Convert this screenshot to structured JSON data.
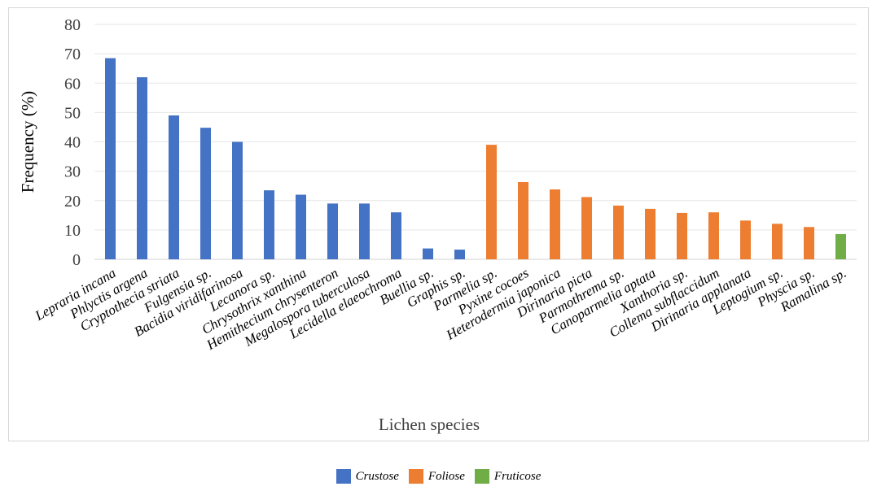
{
  "chart_data": {
    "type": "bar",
    "title": "",
    "xlabel": "Lichen species",
    "ylabel": "Frequency (%)",
    "ylim": [
      0,
      80
    ],
    "yticks": [
      "0",
      "10",
      "20",
      "30",
      "40",
      "50",
      "60",
      "70",
      "80"
    ],
    "grid": true,
    "legend_position": "bottom",
    "categories": [
      "Lepraria incana",
      "Phlyctis argena",
      "Cryptothecia striata",
      "Fulgensia sp.",
      "Bacidia viridifarinosa",
      "Lecanora sp.",
      "Chrysothrix xanthina",
      "Hemithecium chrysenteron",
      "Megalospora tuberculosa",
      "Lecidella elaeochroma",
      "Buellia sp.",
      "Graphis sp.",
      "Parmelia sp.",
      "Pyxine cocoes",
      "Heterodermia japonica",
      "Dirinaria picta",
      "Parmothrema sp.",
      "Canoparmelia aptata",
      "Xanthoria sp.",
      "Collema subflaccidum",
      "Dirinaria applanata",
      "Leptogium sp.",
      "Physcia sp.",
      "Ramalina sp."
    ],
    "values": [
      68.5,
      62,
      49,
      44.8,
      40,
      23.5,
      22,
      19,
      19,
      16,
      3.7,
      3.3,
      39,
      26.3,
      23.8,
      21.2,
      18.3,
      17.2,
      15.8,
      16,
      13.2,
      12.1,
      11,
      8.6
    ],
    "groups": [
      "Crustose",
      "Crustose",
      "Crustose",
      "Crustose",
      "Crustose",
      "Crustose",
      "Crustose",
      "Crustose",
      "Crustose",
      "Crustose",
      "Crustose",
      "Crustose",
      "Foliose",
      "Foliose",
      "Foliose",
      "Foliose",
      "Foliose",
      "Foliose",
      "Foliose",
      "Foliose",
      "Foliose",
      "Foliose",
      "Foliose",
      "Fruticose"
    ],
    "legend": [
      {
        "name": "Crustose",
        "color": "#4472c4"
      },
      {
        "name": "Foliose",
        "color": "#ed7d31"
      },
      {
        "name": "Fruticose",
        "color": "#70ad47"
      }
    ]
  }
}
